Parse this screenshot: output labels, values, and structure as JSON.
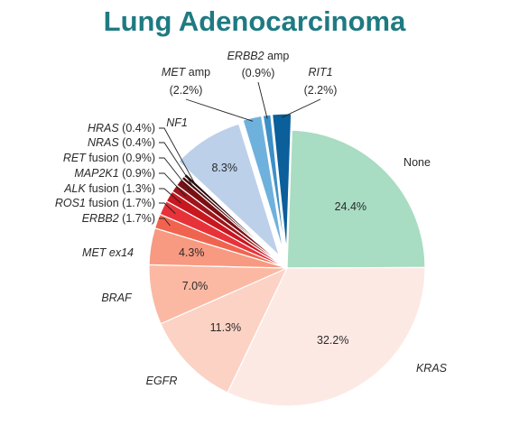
{
  "chart_data": {
    "type": "pie",
    "title": "Lung Adenocarcinoma",
    "unit": "%",
    "slices": [
      {
        "label": "None",
        "italic": false,
        "value": 24.4,
        "value_text": "24.4%",
        "color": "#a8dcc3"
      },
      {
        "label": "KRAS",
        "italic": true,
        "value": 32.2,
        "value_text": "32.2%",
        "color": "#fde9e4"
      },
      {
        "label": "EGFR",
        "italic": true,
        "value": 11.3,
        "value_text": "11.3%",
        "color": "#fcd2c4"
      },
      {
        "label": "BRAF",
        "italic": true,
        "value": 7.0,
        "value_text": "7.0%",
        "color": "#fbb9a3"
      },
      {
        "label": "MET ex14",
        "italic": true,
        "value": 4.3,
        "value_text": "4.3%",
        "color": "#f79a81"
      },
      {
        "label": "ERBB2",
        "italic": true,
        "value": 1.7,
        "value_text": "(1.7%)",
        "color": "#f0644f"
      },
      {
        "label": "ROS1",
        "suffix": " fusion",
        "italic": true,
        "value": 1.7,
        "value_text": "(1.7%)",
        "color": "#e8323a"
      },
      {
        "label": "ALK",
        "suffix": " fusion",
        "italic": true,
        "value": 1.3,
        "value_text": "(1.3%)",
        "color": "#c9171f"
      },
      {
        "label": "MAP2K1",
        "italic": true,
        "value": 0.9,
        "value_text": "(0.9%)",
        "color": "#a0151b"
      },
      {
        "label": "RET",
        "suffix": " fusion",
        "italic": true,
        "value": 0.9,
        "value_text": "(0.9%)",
        "color": "#7a1014"
      },
      {
        "label": "NRAS",
        "italic": true,
        "value": 0.4,
        "value_text": "(0.4%)",
        "color": "#4a0a0c"
      },
      {
        "label": "HRAS",
        "italic": true,
        "value": 0.4,
        "value_text": "(0.4%)",
        "color": "#2a0506"
      },
      {
        "label": "NF1",
        "italic": true,
        "value": 8.3,
        "value_text": "8.3%",
        "color": "#bcd0ea"
      },
      {
        "label": "MET",
        "suffix": " amp",
        "italic": true,
        "value": 2.2,
        "value_text": "(2.2%)",
        "color": "#6fb1dd"
      },
      {
        "label": "ERBB2",
        "suffix": " amp",
        "italic": true,
        "value": 0.9,
        "value_text": "(0.9%)",
        "color": "#3d8fc7"
      },
      {
        "label": "RIT1",
        "italic": true,
        "value": 2.2,
        "value_text": "(2.2%)",
        "color": "#0b5f9a"
      }
    ]
  }
}
